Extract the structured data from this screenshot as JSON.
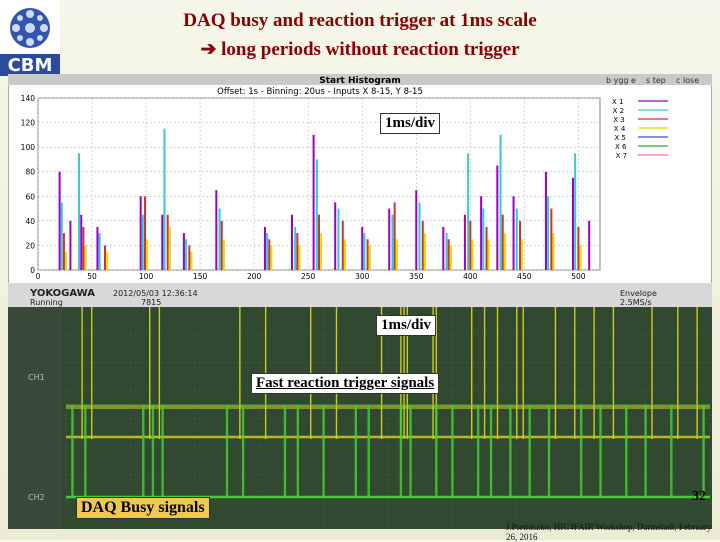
{
  "slide": {
    "title_line1": "DAQ busy and reaction trigger at 1ms scale",
    "title_line2": "long periods without reaction trigger",
    "logo_text": "CBM",
    "page_number": "32",
    "footer": "J.Pietraszko, HIC4FAIR Workshop, Darmstadt, February 26, 2016",
    "colors": {
      "title": "#8b0000",
      "label_bg": "#ffffff",
      "busy_label_bg": "#f1c84e"
    }
  },
  "histogram_window": {
    "title": "Start Histogram",
    "top_buttons": [
      "b ygg e",
      "s tep",
      "c lose"
    ],
    "header": "Offset: 1s - Binning: 20us - Inputs  X 8-15, Y 8-15",
    "legend_labels": [
      "X 1",
      "X 2",
      "X 3",
      "X 4",
      "X 5",
      "X 6",
      "X 7"
    ]
  },
  "scope_status": {
    "brand": "YOKOGAWA",
    "mode": "Running",
    "datetime": "2012/05/03 12:36:14",
    "sub": "7815",
    "envelope_label": "Envelope",
    "envelope_value": "2.5MS/s"
  },
  "labels": {
    "div_top": "1ms/div",
    "div_scope": "1ms/div",
    "fast_trigger": "Fast reaction trigger signals",
    "daq_busy": "DAQ Busy signals"
  },
  "scope_channels": [
    "CH1",
    "CH2"
  ],
  "chart_data": [
    {
      "type": "bar",
      "title": "Start Histogram",
      "subtitle": "Offset: 1s - Binning: 20us - Inputs  X 8-15, Y 8-15",
      "xlim": [
        0,
        520
      ],
      "ylim": [
        0,
        140
      ],
      "xticks": [
        0,
        50,
        100,
        150,
        200,
        250,
        300,
        350,
        400,
        450,
        500
      ],
      "yticks": [
        0,
        20,
        40,
        60,
        80,
        100,
        120,
        140
      ],
      "grid": true,
      "series": [
        {
          "color": "#9900cc",
          "x": [
            20,
            30,
            40,
            55,
            95,
            115,
            135,
            165,
            210,
            235,
            255,
            275,
            300,
            325,
            350,
            375,
            395,
            410,
            425,
            440,
            470,
            495,
            510
          ],
          "values": [
            80,
            40,
            45,
            35,
            60,
            45,
            30,
            65,
            35,
            45,
            110,
            55,
            35,
            50,
            65,
            35,
            45,
            60,
            85,
            60,
            80,
            75,
            40
          ]
        },
        {
          "color": "#33cccc",
          "x": [
            22,
            38,
            57,
            97,
            117,
            137,
            168,
            212,
            238,
            258,
            278,
            302,
            328,
            353,
            378,
            398,
            412,
            428,
            443,
            472,
            497
          ],
          "values": [
            55,
            95,
            30,
            45,
            115,
            25,
            50,
            30,
            35,
            90,
            50,
            30,
            45,
            55,
            30,
            95,
            50,
            110,
            50,
            60,
            95
          ]
        },
        {
          "color": "#cc3333",
          "x": [
            24,
            42,
            62,
            99,
            120,
            140,
            170,
            214,
            240,
            260,
            282,
            305,
            330,
            356,
            380,
            400,
            415,
            430,
            446,
            475,
            500
          ],
          "values": [
            30,
            35,
            20,
            60,
            45,
            20,
            40,
            25,
            30,
            45,
            40,
            25,
            55,
            40,
            25,
            40,
            35,
            45,
            40,
            50,
            35
          ]
        },
        {
          "color": "#dddd00",
          "x": [
            26,
            44,
            64,
            101,
            122,
            142,
            172,
            216,
            242,
            262,
            284,
            307,
            332,
            358,
            382,
            402,
            417,
            432,
            448,
            477,
            502
          ],
          "values": [
            15,
            20,
            15,
            25,
            35,
            15,
            25,
            20,
            20,
            30,
            25,
            20,
            25,
            30,
            20,
            25,
            25,
            30,
            25,
            30,
            20
          ]
        }
      ]
    },
    {
      "type": "line",
      "xlabel": "1ms/div",
      "series": [
        {
          "name": "Fast reaction trigger signals",
          "color": "#cccc22",
          "spikes_x_ms": [
            0.25,
            0.4,
            1.3,
            1.45,
            2.7,
            3.1,
            3.8,
            4.2,
            4.9,
            5.2,
            5.25,
            5.3,
            5.7,
            5.75,
            6.3,
            6.5,
            6.7,
            7.0,
            7.1,
            7.6,
            7.9,
            8.2,
            8.5,
            9.1,
            9.5,
            9.8
          ]
        },
        {
          "name": "DAQ Busy signals",
          "color": "#44cc33",
          "spikes_x_ms": [
            0.1,
            0.3,
            1.2,
            1.35,
            1.5,
            2.5,
            2.75,
            3.4,
            3.6,
            4.0,
            4.5,
            4.7,
            5.2,
            5.35,
            5.75,
            6.0,
            6.4,
            6.6,
            6.9,
            7.2,
            7.5,
            8.0,
            8.3,
            8.7,
            9.0,
            9.4,
            9.9
          ]
        }
      ]
    }
  ]
}
